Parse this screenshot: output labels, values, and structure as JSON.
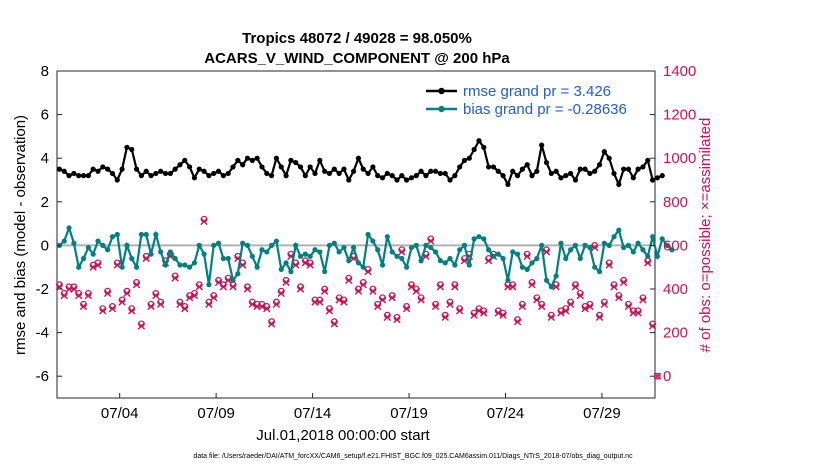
{
  "chart_data": {
    "type": "line",
    "title_line1": "Tropics 48072 / 49028 = 98.050%",
    "title_line2": "ACARS_V_WIND_COMPONENT @ 200 hPa",
    "xlabel": "Jul.01,2018 00:00:00 start",
    "ylabel_left": "rmse and bias (model - observation)",
    "ylabel_right": "# of obs: o=possible; ×=assimilated",
    "ylim_left": [
      -7,
      8
    ],
    "ylim_right": [
      -100,
      1400
    ],
    "xlim": [
      0,
      124
    ],
    "left_ticks": [
      {
        "value": 8,
        "label": "8"
      },
      {
        "value": 6,
        "label": "6"
      },
      {
        "value": 4,
        "label": "4"
      },
      {
        "value": 2,
        "label": "2"
      },
      {
        "value": 0,
        "label": "0"
      },
      {
        "value": -2,
        "label": "-2"
      },
      {
        "value": -4,
        "label": "-4"
      },
      {
        "value": -6,
        "label": "-6"
      }
    ],
    "right_ticks": [
      {
        "value": 1400,
        "label": "1400"
      },
      {
        "value": 1200,
        "label": "1200"
      },
      {
        "value": 1000,
        "label": "1000"
      },
      {
        "value": 800,
        "label": "800"
      },
      {
        "value": 600,
        "label": "600"
      },
      {
        "value": 400,
        "label": "400"
      },
      {
        "value": 200,
        "label": "200"
      },
      {
        "value": 0,
        "label": "0"
      }
    ],
    "x_ticks": [
      {
        "value": 13,
        "label": "07/04"
      },
      {
        "value": 33,
        "label": "07/09"
      },
      {
        "value": 53,
        "label": "07/14"
      },
      {
        "value": 73,
        "label": "07/19"
      },
      {
        "value": 93,
        "label": "07/24"
      },
      {
        "value": 113,
        "label": "07/29"
      }
    ],
    "zero_line": 0,
    "series": [
      {
        "name": "rmse grand pr = 3.426",
        "color": "#000000",
        "axis": "left",
        "values": [
          3.5,
          3.4,
          3.2,
          3.3,
          3.2,
          3.2,
          3.2,
          3.5,
          3.4,
          3.6,
          3.5,
          3.3,
          3.0,
          3.5,
          4.5,
          4.4,
          3.5,
          3.2,
          3.4,
          3.2,
          3.3,
          3.4,
          3.3,
          3.3,
          3.5,
          3.7,
          3.9,
          3.6,
          3.1,
          3.5,
          3.4,
          3.2,
          3.3,
          3.4,
          3.2,
          3.3,
          3.6,
          3.9,
          3.7,
          4.0,
          3.9,
          4.0,
          3.6,
          3.3,
          3.2,
          4.0,
          3.6,
          3.2,
          3.9,
          3.8,
          3.6,
          3.2,
          3.6,
          3.3,
          3.9,
          3.4,
          3.3,
          3.5,
          3.3,
          3.5,
          3.0,
          3.4,
          4.0,
          3.5,
          3.3,
          3.6,
          3.2,
          3.1,
          3.3,
          3.2,
          3.0,
          3.2,
          3.0,
          3.1,
          3.2,
          3.4,
          3.2,
          3.4,
          3.4,
          3.3,
          3.3,
          3.0,
          3.2,
          3.6,
          3.9,
          4.0,
          4.4,
          4.8,
          4.5,
          3.6,
          3.6,
          3.4,
          3.2,
          2.8,
          3.4,
          3.2,
          3.5,
          3.7,
          3.2,
          3.4,
          4.6,
          3.8,
          3.3,
          3.4,
          3.1,
          3.2,
          3.3,
          3.0,
          3.5,
          3.5,
          3.3,
          3.4,
          3.7,
          4.3,
          4.0,
          3.3,
          2.8,
          3.5,
          3.5,
          3.1,
          3.5,
          3.6,
          3.9,
          3.0,
          3.1,
          3.2
        ]
      },
      {
        "name": "bias grand pr = -0.28636",
        "color": "#008080",
        "axis": "left",
        "values": [
          0.0,
          0.2,
          0.8,
          0.1,
          -1.0,
          -0.6,
          -0.1,
          -0.4,
          0.2,
          0.0,
          -0.2,
          0.4,
          0.5,
          -1.0,
          0.0,
          -0.6,
          -1.0,
          0.5,
          0.5,
          -0.4,
          0.5,
          -0.3,
          -0.9,
          -0.3,
          -0.6,
          -0.9,
          -0.9,
          -1.0,
          -0.8,
          0.0,
          -0.4,
          -1.8,
          0.0,
          0.1,
          -0.6,
          -0.6,
          -1.6,
          -1.3,
          0.1,
          0.0,
          -0.5,
          -1.0,
          -0.2,
          -0.3,
          0.0,
          0.2,
          -1.1,
          -0.8,
          -1.2,
          0.0,
          -0.5,
          -0.4,
          -0.5,
          -0.2,
          -0.3,
          -1.2,
          0.0,
          0.1,
          -0.3,
          -0.1,
          -0.7,
          -0.1,
          -0.8,
          -1.0,
          0.5,
          0.2,
          -0.2,
          -0.9,
          0.4,
          -0.3,
          -0.5,
          -0.6,
          -1.0,
          -0.1,
          0.0,
          -0.7,
          0.0,
          -0.1,
          -0.3,
          -0.7,
          -0.8,
          -0.6,
          -0.9,
          -0.2,
          0.0,
          -0.9,
          0.3,
          0.4,
          0.3,
          -0.2,
          -0.5,
          -0.4,
          -0.6,
          -1.6,
          -0.3,
          -0.4,
          -1.0,
          -1.1,
          -0.8,
          -0.6,
          0.0,
          -1.6,
          -1.9,
          -1.4,
          0.1,
          -0.6,
          -0.2,
          0.0,
          -0.6,
          0.0,
          -0.1,
          -1.0,
          -1.2,
          0.1,
          0.0,
          0.4,
          0.7,
          -0.1,
          0.0,
          -0.3,
          0.1,
          -0.2,
          -0.5,
          0.4,
          -0.5,
          0.3,
          0.0,
          -0.2
        ]
      }
    ],
    "obs_possible": [
      420,
      380,
      410,
      410,
      380,
      330,
      380,
      510,
      520,
      310,
      390,
      320,
      520,
      350,
      390,
      310,
      430,
      240,
      550,
      330,
      380,
      340,
      530,
      560,
      460,
      340,
      320,
      370,
      380,
      420,
      720,
      340,
      370,
      440,
      420,
      450,
      420,
      550,
      520,
      410,
      340,
      330,
      330,
      320,
      250,
      340,
      390,
      440,
      560,
      520,
      410,
      530,
      520,
      350,
      350,
      400,
      310,
      250,
      360,
      350,
      450,
      550,
      400,
      430,
      490,
      400,
      330,
      360,
      280,
      370,
      270,
      580,
      320,
      420,
      400,
      360,
      560,
      630,
      330,
      420,
      280,
      340,
      420,
      310,
      540,
      560,
      290,
      310,
      300,
      540,
      560,
      300,
      290,
      420,
      420,
      260,
      330,
      560,
      430,
      360,
      330,
      580,
      280,
      420,
      300,
      310,
      340,
      420,
      380,
      320,
      330,
      600,
      280,
      340,
      520,
      420,
      370,
      440,
      330,
      300,
      300,
      360,
      530,
      240,
      0
    ],
    "obs_assimilated": [
      410,
      370,
      400,
      400,
      370,
      320,
      370,
      500,
      510,
      300,
      380,
      310,
      510,
      340,
      380,
      300,
      420,
      230,
      540,
      320,
      370,
      330,
      520,
      550,
      450,
      330,
      310,
      360,
      370,
      410,
      710,
      330,
      360,
      430,
      410,
      440,
      410,
      540,
      510,
      400,
      330,
      320,
      320,
      310,
      240,
      330,
      380,
      430,
      550,
      510,
      400,
      520,
      510,
      340,
      340,
      390,
      300,
      240,
      350,
      340,
      440,
      540,
      390,
      420,
      480,
      390,
      320,
      350,
      270,
      360,
      260,
      570,
      310,
      410,
      390,
      350,
      550,
      620,
      320,
      410,
      270,
      330,
      410,
      300,
      530,
      550,
      280,
      300,
      290,
      530,
      550,
      290,
      280,
      410,
      410,
      250,
      320,
      550,
      420,
      350,
      320,
      570,
      270,
      410,
      290,
      300,
      330,
      410,
      370,
      310,
      320,
      590,
      270,
      330,
      510,
      410,
      360,
      430,
      320,
      290,
      290,
      350,
      520,
      230,
      0
    ],
    "obs_color": "#cc1155"
  },
  "footer": "data file: /Users/raeder/DAI/ATM_forcXX/CAM6_setup/f.e21.FHIST_BGC.f09_025.CAM6assim.011/Diags_NTrS_2018-07/obs_diag_output.nc"
}
